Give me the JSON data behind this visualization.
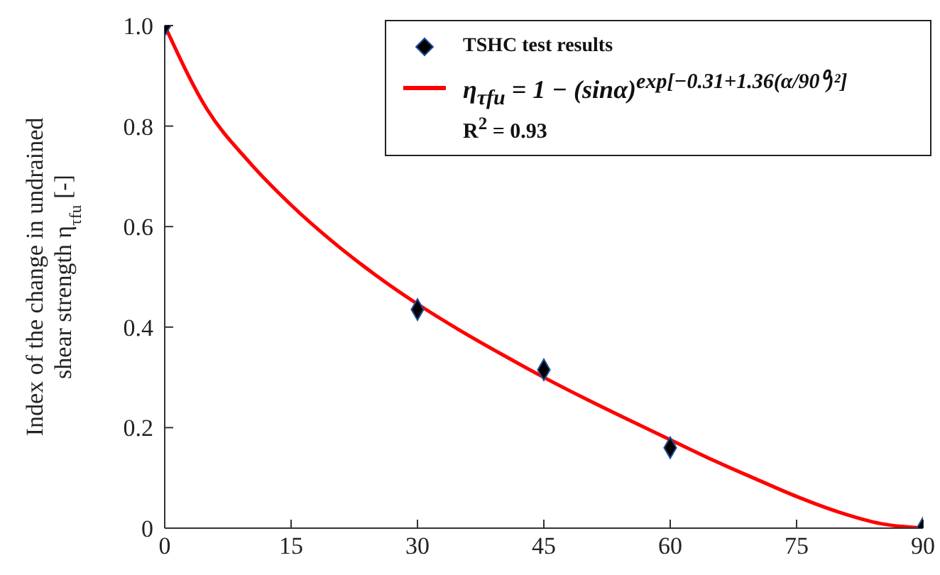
{
  "chart_data": {
    "type": "scatter",
    "ylabel": "Index of the change in undrained shear strength η$_{τfu}$ [-]",
    "xlim": [
      0,
      90
    ],
    "xticks": [
      0,
      15,
      30,
      45,
      60,
      75,
      90
    ],
    "ylim": [
      0,
      1
    ],
    "yticks": [
      {
        "value": 0,
        "label": "0"
      },
      0.2,
      0.4,
      0.6,
      0.8,
      {
        "value": 1,
        "label": "1.0"
      }
    ],
    "legend": "top right",
    "series": [
      {
        "name": "TSHC test results",
        "marker": "diamond",
        "color": "#000000",
        "x": [
          0,
          30,
          45,
          60,
          90
        ],
        "values": [
          1.0,
          0.435,
          0.315,
          0.16,
          0.0
        ]
      },
      {
        "name": "η$_{τfu}$ = 1 − (sinα)$^{exp[−0.31+1.36(α/90⁰)²]}$",
        "type": "line",
        "marker": "none",
        "line_style": "solid",
        "color": "#ff0000",
        "x": [
          0,
          5,
          10,
          15,
          20,
          25,
          30,
          35,
          40,
          45,
          50,
          55,
          60,
          65,
          70,
          75,
          80,
          85,
          90
        ],
        "values": [
          1.0,
          0.834,
          0.729,
          0.643,
          0.569,
          0.504,
          0.446,
          0.394,
          0.346,
          0.3,
          0.257,
          0.216,
          0.176,
          0.136,
          0.099,
          0.063,
          0.032,
          0.009,
          0.0
        ]
      }
    ],
    "annotations": [
      "R$^{2}$ = 0.93"
    ]
  }
}
